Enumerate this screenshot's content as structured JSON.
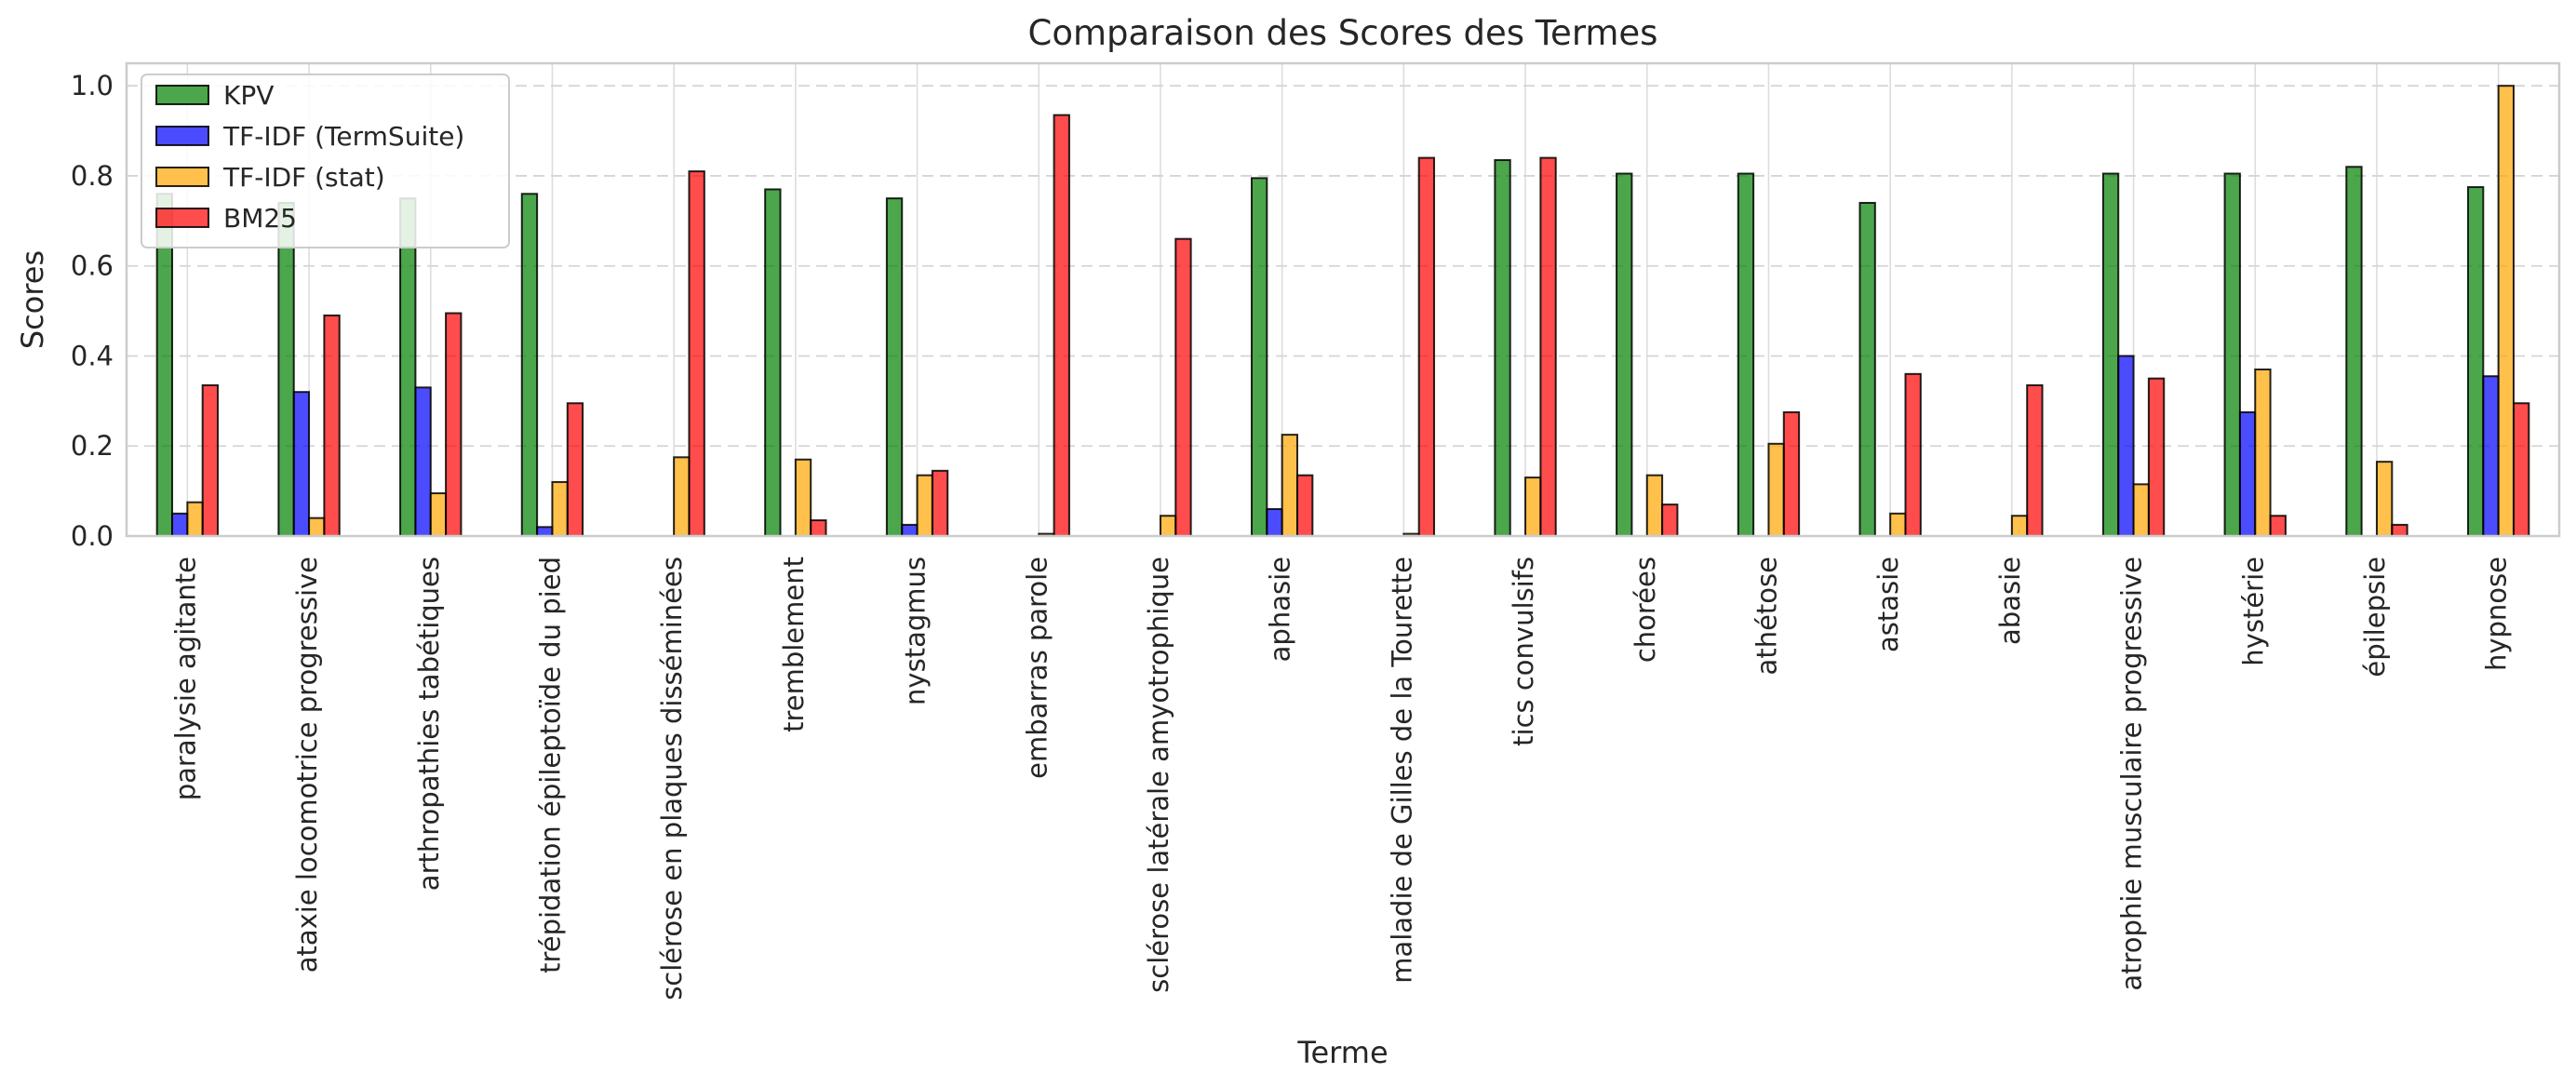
{
  "chart_data": {
    "type": "bar",
    "title": "Comparaison des Scores des Termes",
    "xlabel": "Terme",
    "ylabel": "Scores",
    "ylim": [
      0,
      1.05
    ],
    "yticks": [
      "0.0",
      "0.2",
      "0.4",
      "0.6",
      "0.8",
      "1.0"
    ],
    "grid": true,
    "legend_position": "top-left",
    "categories": [
      "paralysie agitante",
      "ataxie locomotrice progressive",
      "arthropathies tabétiques",
      "trépidation épileptoïde du pied",
      "sclérose en plaques disséminées",
      "tremblement",
      "nystagmus",
      "embarras parole",
      "sclérose latérale amyotrophique",
      "aphasie",
      "maladie de Gilles de la Tourette",
      "tics convulsifs",
      "chorées",
      "athétose",
      "astasie",
      "abasie",
      "atrophie musculaire progressive",
      "hystérie",
      "épilepsie",
      "hypnose"
    ],
    "series": [
      {
        "name": "KPV",
        "color": "#008000",
        "values": [
          0.76,
          0.74,
          0.75,
          0.76,
          0.0,
          0.77,
          0.75,
          0.0,
          0.0,
          0.795,
          0.0,
          0.835,
          0.805,
          0.805,
          0.74,
          0.0,
          0.805,
          0.805,
          0.82,
          0.775
        ]
      },
      {
        "name": "TF-IDF (TermSuite)",
        "color": "#0000ff",
        "values": [
          0.05,
          0.32,
          0.33,
          0.02,
          0.0,
          0.0,
          0.025,
          0.0,
          0.0,
          0.06,
          0.0,
          0.0,
          0.0,
          0.0,
          0.0,
          0.0,
          0.4,
          0.275,
          0.0,
          0.355
        ]
      },
      {
        "name": "TF-IDF (stat)",
        "color": "#ffa500",
        "values": [
          0.075,
          0.04,
          0.095,
          0.12,
          0.175,
          0.17,
          0.135,
          0.005,
          0.045,
          0.225,
          0.005,
          0.13,
          0.135,
          0.205,
          0.05,
          0.045,
          0.115,
          0.37,
          0.165,
          1.0
        ]
      },
      {
        "name": "BM25",
        "color": "#ff0000",
        "values": [
          0.335,
          0.49,
          0.495,
          0.295,
          0.81,
          0.035,
          0.145,
          0.935,
          0.66,
          0.135,
          0.84,
          0.84,
          0.07,
          0.275,
          0.36,
          0.335,
          0.35,
          0.045,
          0.025,
          0.295
        ]
      }
    ]
  }
}
